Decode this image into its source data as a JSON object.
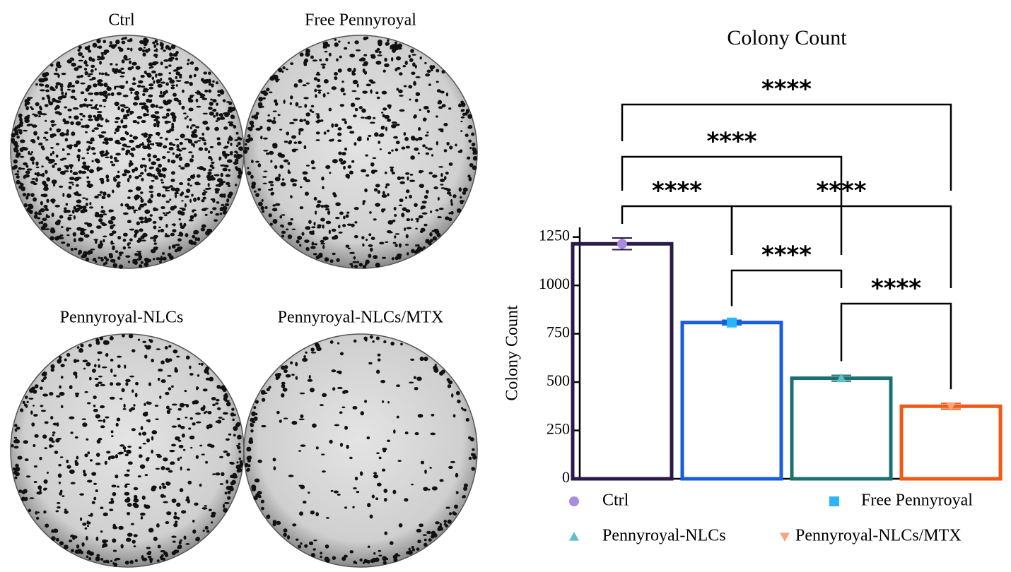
{
  "plate_labels": [
    "Ctrl",
    "Free Pennyroyal",
    "Pennyroyal-NLCs",
    "Pennyroyal-NLCs/MTX"
  ],
  "chart_data": {
    "type": "bar",
    "title": "Colony Count",
    "ylabel": "Colony Count",
    "ylim": [
      0,
      1300
    ],
    "yticks": [
      0,
      250,
      500,
      750,
      1000,
      1250
    ],
    "series": [
      {
        "name": "Ctrl",
        "color": "#2a1a4a",
        "marker_color": "#a98be0",
        "marker": "circle",
        "values": [
          1215
        ],
        "errors": [
          30
        ]
      },
      {
        "name": "Free Pennyroyal",
        "color": "#1a5ce0",
        "marker_color": "#29b6f6",
        "marker": "square",
        "values": [
          808
        ],
        "errors": [
          12
        ]
      },
      {
        "name": "Pennyroyal-NLCs",
        "color": "#1d7070",
        "marker_color": "#5bc0c8",
        "marker": "triangle",
        "values": [
          520
        ],
        "errors": [
          15
        ]
      },
      {
        "name": "Pennyroyal-NLCs/MTX",
        "color": "#f05a14",
        "marker_color": "#f4a582",
        "marker": "triangle-down",
        "values": [
          375
        ],
        "errors": [
          15
        ]
      }
    ],
    "comparisons": [
      {
        "groups": [
          0,
          3
        ],
        "label": "****"
      },
      {
        "groups": [
          0,
          2
        ],
        "label": "****"
      },
      {
        "groups": [
          0,
          1
        ],
        "label": "****"
      },
      {
        "groups": [
          1,
          3
        ],
        "label": "****"
      },
      {
        "groups": [
          1,
          2
        ],
        "label": "****"
      },
      {
        "groups": [
          2,
          3
        ],
        "label": "****"
      }
    ]
  }
}
